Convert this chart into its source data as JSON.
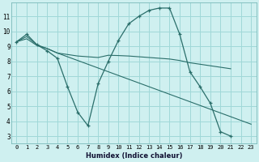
{
  "bg_color": "#cff0f0",
  "grid_color": "#a0d8d8",
  "line_color": "#2a6e6a",
  "xlabel": "Humidex (Indice chaleur)",
  "xlim": [
    -0.5,
    23.5
  ],
  "ylim": [
    2.5,
    11.9
  ],
  "yticks": [
    3,
    4,
    5,
    6,
    7,
    8,
    9,
    10,
    11
  ],
  "xticks": [
    0,
    1,
    2,
    3,
    4,
    5,
    6,
    7,
    8,
    9,
    10,
    11,
    12,
    13,
    14,
    15,
    16,
    17,
    18,
    19,
    20,
    21,
    22,
    23
  ],
  "line1_x": [
    0,
    1,
    2,
    3,
    4,
    5,
    6,
    7,
    8,
    9,
    10,
    11,
    12,
    13,
    14,
    15,
    16,
    17,
    18,
    19,
    20,
    21
  ],
  "line1_y": [
    9.3,
    9.8,
    9.1,
    8.7,
    8.2,
    6.3,
    4.6,
    3.7,
    6.5,
    8.0,
    9.4,
    10.5,
    11.0,
    11.4,
    11.55,
    11.55,
    9.8,
    7.3,
    6.3,
    5.2,
    3.3,
    3.0
  ],
  "line2_x": [
    0,
    1,
    2,
    3,
    4,
    5,
    6,
    7,
    8,
    9,
    10,
    11,
    12,
    13,
    14,
    15,
    16,
    17,
    18,
    19,
    20,
    21
  ],
  "line2_y": [
    9.3,
    9.65,
    9.1,
    8.85,
    8.55,
    8.45,
    8.35,
    8.3,
    8.25,
    8.4,
    8.38,
    8.35,
    8.3,
    8.25,
    8.2,
    8.15,
    8.05,
    7.9,
    7.8,
    7.7,
    7.6,
    7.5
  ],
  "line3_x": [
    0,
    1,
    2,
    3,
    4,
    5,
    6,
    7,
    8,
    9,
    10,
    11,
    12,
    13,
    14,
    15,
    16,
    17,
    18,
    19,
    20,
    21,
    22,
    23
  ],
  "line3_y": [
    9.3,
    9.5,
    9.05,
    8.85,
    8.55,
    8.3,
    8.05,
    7.8,
    7.55,
    7.3,
    7.05,
    6.8,
    6.55,
    6.3,
    6.05,
    5.8,
    5.55,
    5.3,
    5.05,
    4.8,
    4.55,
    4.3,
    4.05,
    3.8
  ]
}
